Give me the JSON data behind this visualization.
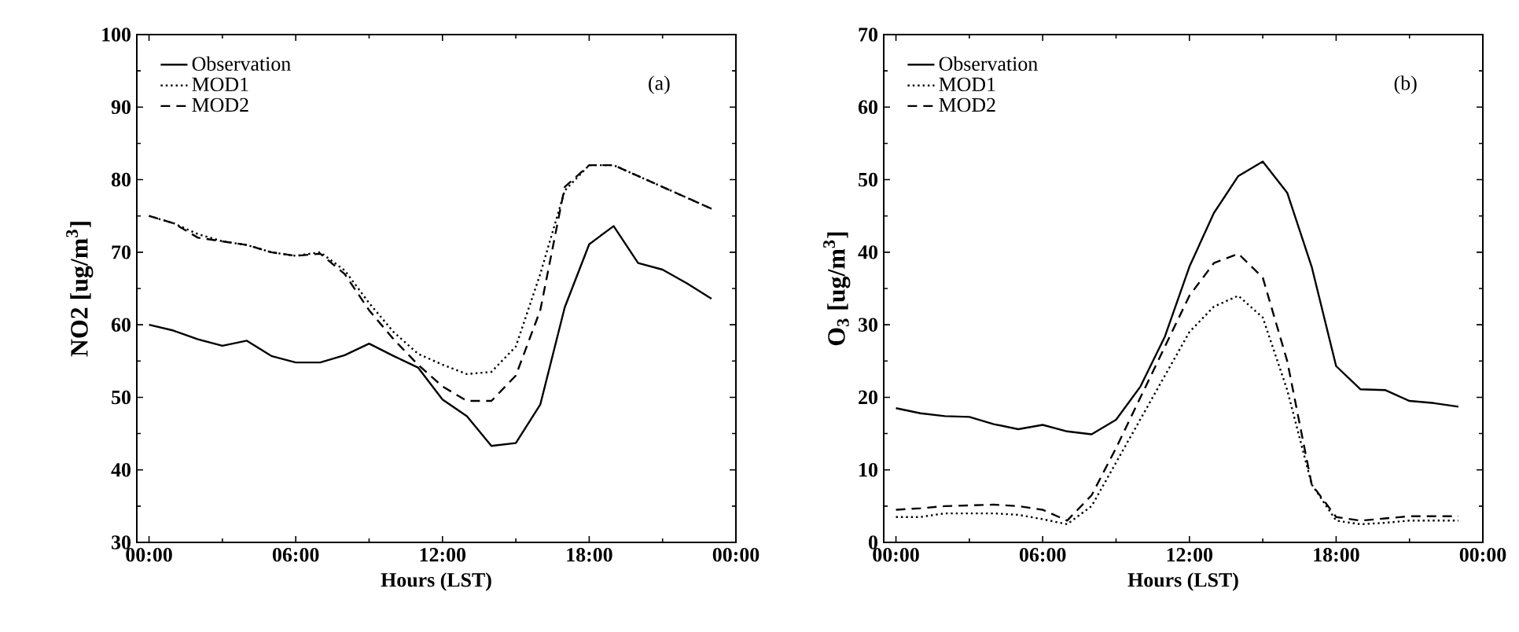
{
  "chart_data": [
    {
      "type": "line",
      "xlabel": "Hours (LST)",
      "ylabel": "NO2 [ug/m$^{3}$]",
      "annotations": [
        "(a)"
      ],
      "legend": "top left",
      "x": [
        0,
        1,
        2,
        3,
        4,
        5,
        6,
        7,
        8,
        9,
        10,
        11,
        12,
        13,
        14,
        15,
        16,
        17,
        18,
        19,
        20,
        21,
        22,
        23
      ],
      "xlim": [
        -0.5,
        24
      ],
      "xticks": [
        {
          "value": 0,
          "label": "00:00"
        },
        {
          "value": 6,
          "label": "06:00"
        },
        {
          "value": 12,
          "label": "12:00"
        },
        {
          "value": 18,
          "label": "18:00"
        },
        {
          "value": 24,
          "label": "00:00"
        }
      ],
      "ylim": [
        30,
        100
      ],
      "yticks": [
        30,
        40,
        50,
        60,
        70,
        80,
        90,
        100
      ],
      "series": [
        {
          "name": "Observation",
          "color": "#000000",
          "line_style": "solid",
          "values": [
            60.0,
            59.2,
            58.0,
            57.1,
            57.8,
            55.7,
            54.8,
            54.8,
            55.8,
            57.4,
            55.7,
            54.1,
            49.7,
            47.4,
            43.3,
            43.7,
            49.0,
            62.4,
            71.1,
            73.6,
            68.5,
            67.6,
            65.7,
            63.6
          ]
        },
        {
          "name": "MOD1",
          "color": "#000000",
          "line_style": "dotted",
          "values": [
            75,
            74,
            72.5,
            71.5,
            71,
            70,
            69.5,
            70,
            67.5,
            63,
            59,
            56,
            54.5,
            53.2,
            53.5,
            57,
            67,
            78.5,
            82,
            82,
            80.5,
            79,
            77.5,
            76
          ]
        },
        {
          "name": "MOD2",
          "color": "#000000",
          "line_style": "dashed",
          "values": [
            75,
            74,
            72,
            71.5,
            71,
            70,
            69.5,
            69.8,
            67,
            62,
            58,
            54.5,
            51.5,
            49.5,
            49.5,
            53,
            62,
            79,
            82,
            82,
            80.5,
            79,
            77.5,
            76
          ]
        }
      ]
    },
    {
      "type": "line",
      "xlabel": "Hours (LST)",
      "ylabel": "O$_{3}$ [ug/m$^{3}$]",
      "annotations": [
        "(b)"
      ],
      "legend": "top left",
      "x": [
        0,
        1,
        2,
        3,
        4,
        5,
        6,
        7,
        8,
        9,
        10,
        11,
        12,
        13,
        14,
        15,
        16,
        17,
        18,
        19,
        20,
        21,
        22,
        23
      ],
      "xlim": [
        -0.5,
        24
      ],
      "xticks": [
        {
          "value": 0,
          "label": "00:00"
        },
        {
          "value": 6,
          "label": "06:00"
        },
        {
          "value": 12,
          "label": "12:00"
        },
        {
          "value": 18,
          "label": "18:00"
        },
        {
          "value": 24,
          "label": "00:00"
        }
      ],
      "ylim": [
        0,
        70
      ],
      "yticks": [
        0,
        10,
        20,
        30,
        40,
        50,
        60,
        70
      ],
      "series": [
        {
          "name": "Observation",
          "color": "#000000",
          "line_style": "solid",
          "values": [
            18.5,
            17.8,
            17.4,
            17.3,
            16.3,
            15.6,
            16.2,
            15.3,
            14.9,
            16.9,
            21.5,
            28.4,
            38.0,
            45.4,
            50.5,
            52.5,
            48.2,
            38.0,
            24.3,
            21.1,
            21.0,
            19.5,
            19.2,
            18.7
          ]
        },
        {
          "name": "MOD1",
          "color": "#000000",
          "line_style": "dotted",
          "values": [
            3.5,
            3.5,
            4,
            4,
            4,
            3.8,
            3.2,
            2.5,
            5,
            11,
            17,
            23,
            29,
            32.5,
            34,
            31,
            21,
            8,
            3,
            2.5,
            2.7,
            3,
            3,
            3
          ]
        },
        {
          "name": "MOD2",
          "color": "#000000",
          "line_style": "dashed",
          "values": [
            4.5,
            4.7,
            5,
            5.1,
            5.2,
            5,
            4.5,
            3,
            6.5,
            13,
            20,
            27,
            34,
            38.5,
            39.8,
            36.5,
            25,
            8,
            3.5,
            3,
            3.3,
            3.6,
            3.6,
            3.6
          ]
        }
      ]
    }
  ]
}
